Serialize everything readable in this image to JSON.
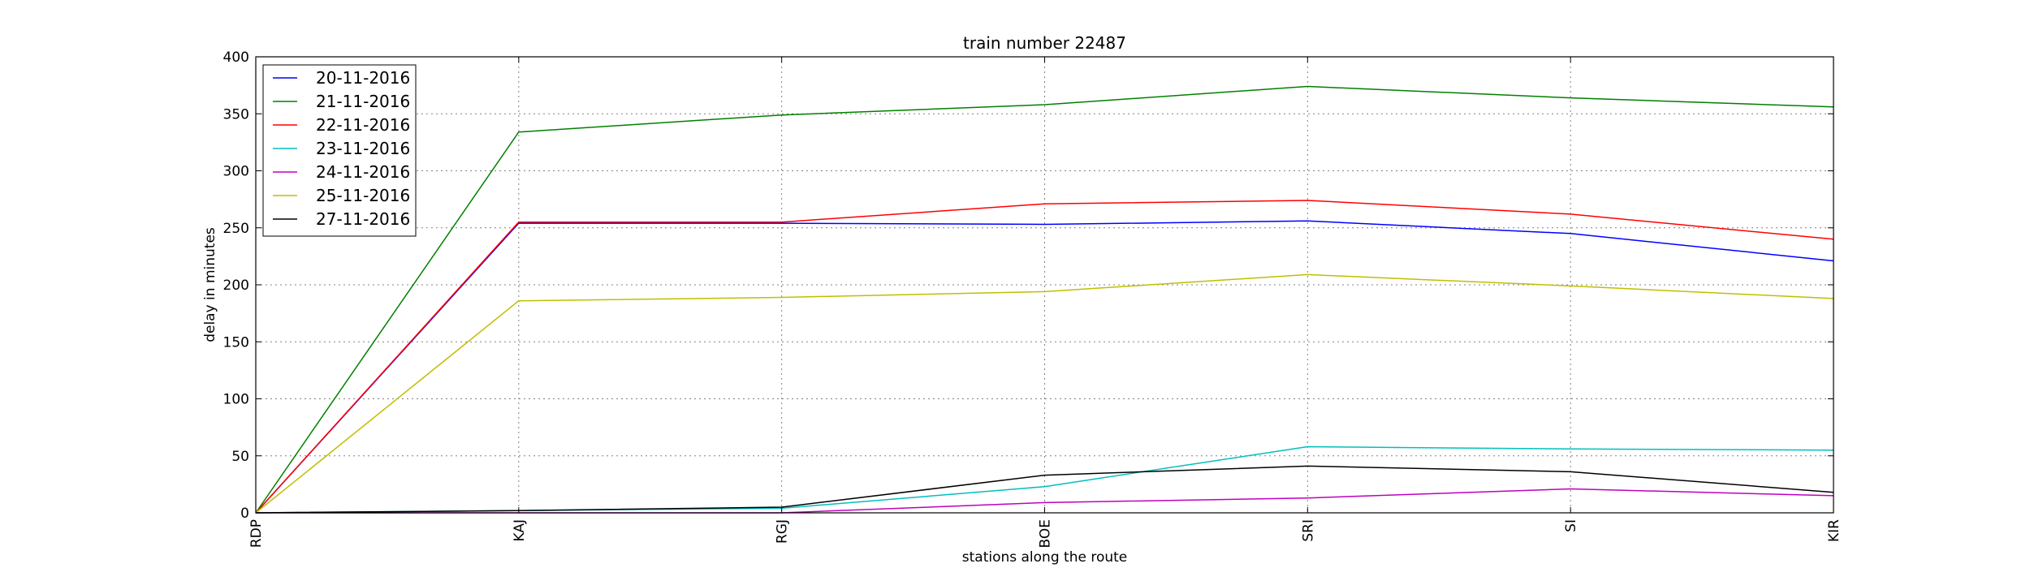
{
  "chart_data": {
    "type": "line",
    "title": "train number 22487",
    "xlabel": "stations along the route",
    "ylabel": "delay in minutes",
    "categories": [
      "RDP",
      "KAJ",
      "RGJ",
      "BOE",
      "SRI",
      "SI",
      "KIR"
    ],
    "ylim": [
      0,
      400
    ],
    "yticks": [
      0,
      50,
      100,
      150,
      200,
      250,
      300,
      350,
      400
    ],
    "grid": true,
    "legend_position": "top-left",
    "series": [
      {
        "name": "20-11-2016",
        "color": "#0000ff",
        "values": [
          0,
          254,
          254,
          253,
          256,
          245,
          221
        ]
      },
      {
        "name": "21-11-2016",
        "color": "#008000",
        "values": [
          0,
          334,
          349,
          358,
          374,
          364,
          356
        ]
      },
      {
        "name": "22-11-2016",
        "color": "#ff0000",
        "values": [
          0,
          255,
          255,
          271,
          274,
          262,
          240
        ]
      },
      {
        "name": "23-11-2016",
        "color": "#00bfbf",
        "values": [
          0,
          2,
          4,
          23,
          58,
          56,
          55
        ]
      },
      {
        "name": "24-11-2016",
        "color": "#bf00bf",
        "values": [
          0,
          0,
          0,
          9,
          13,
          21,
          15
        ]
      },
      {
        "name": "25-11-2016",
        "color": "#bfbf00",
        "values": [
          0,
          186,
          189,
          194,
          209,
          199,
          188
        ]
      },
      {
        "name": "27-11-2016",
        "color": "#000000",
        "values": [
          0,
          2,
          5,
          33,
          41,
          36,
          18
        ]
      }
    ]
  }
}
